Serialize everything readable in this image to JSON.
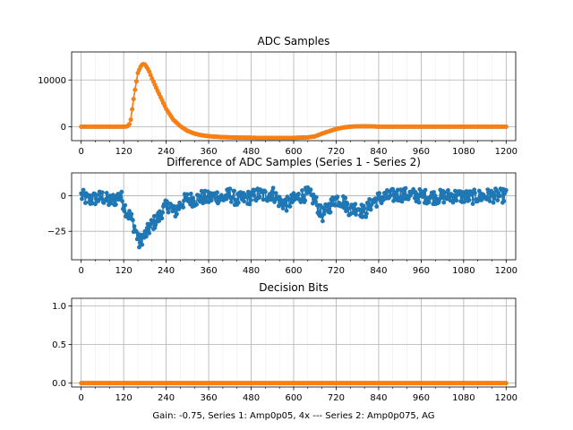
{
  "figure": {
    "footer": "Gain: -0.75, Series 1: Amp0p05, 4x --- Series 2: Amp0p075, AG"
  },
  "chart_data": [
    {
      "type": "line",
      "title": "ADC Samples",
      "xlabel": "",
      "ylabel": "",
      "xlim": [
        -27,
        1227
      ],
      "ylim": [
        -3000,
        16000
      ],
      "xticks": [
        0,
        120,
        240,
        360,
        480,
        600,
        720,
        840,
        960,
        1080,
        1200
      ],
      "xtick_labels": [
        "0",
        "120",
        "240",
        "360",
        "480",
        "600",
        "720",
        "840",
        "960",
        "1080",
        "1200"
      ],
      "yticks": [
        0,
        10000
      ],
      "ytick_labels": [
        "0",
        "10000"
      ],
      "minor_x_step": 40,
      "grid": true,
      "series": [
        {
          "name": "Series 1",
          "color": "#1f77b4",
          "x": [
            0,
            40,
            80,
            110,
            120,
            125,
            130,
            135,
            140,
            150,
            160,
            170,
            175,
            180,
            190,
            200,
            220,
            240,
            260,
            280,
            300,
            320,
            340,
            360,
            380,
            400,
            450,
            500,
            550,
            600,
            640,
            660,
            680,
            700,
            720,
            740,
            760,
            780,
            800,
            820,
            840,
            900,
            1000,
            1100,
            1200
          ],
          "values": [
            0,
            0,
            0,
            0,
            0,
            0,
            50,
            300,
            1500,
            7000,
            11500,
            13200,
            13400,
            13300,
            12200,
            10300,
            7000,
            3800,
            1500,
            100,
            -900,
            -1500,
            -1850,
            -2050,
            -2150,
            -2250,
            -2350,
            -2400,
            -2400,
            -2400,
            -2300,
            -2100,
            -1500,
            -1000,
            -500,
            -200,
            0,
            50,
            80,
            50,
            0,
            0,
            0,
            0,
            0
          ]
        },
        {
          "name": "Series 2",
          "color": "#ff7f0e",
          "x": [
            0,
            40,
            80,
            110,
            120,
            125,
            130,
            135,
            140,
            150,
            160,
            170,
            175,
            180,
            190,
            200,
            220,
            240,
            260,
            280,
            300,
            320,
            340,
            360,
            380,
            400,
            450,
            500,
            550,
            600,
            640,
            660,
            680,
            700,
            720,
            740,
            760,
            780,
            800,
            820,
            840,
            900,
            1000,
            1100,
            1200
          ],
          "values": [
            0,
            0,
            0,
            0,
            0,
            0,
            50,
            300,
            1500,
            7000,
            11500,
            13200,
            13400,
            13300,
            12200,
            10300,
            7000,
            3800,
            1500,
            100,
            -900,
            -1500,
            -1850,
            -2050,
            -2150,
            -2250,
            -2350,
            -2400,
            -2400,
            -2400,
            -2300,
            -2100,
            -1500,
            -1000,
            -500,
            -200,
            0,
            50,
            80,
            50,
            0,
            0,
            0,
            0,
            0
          ]
        }
      ]
    },
    {
      "type": "line",
      "title": "Difference of ADC Samples (Series 1 - Series 2)",
      "xlabel": "",
      "ylabel": "",
      "xlim": [
        -27,
        1227
      ],
      "ylim": [
        -45,
        16
      ],
      "xticks": [
        0,
        120,
        240,
        360,
        480,
        600,
        720,
        840,
        960,
        1080,
        1200
      ],
      "xtick_labels": [
        "0",
        "120",
        "240",
        "360",
        "480",
        "600",
        "720",
        "840",
        "960",
        "1080",
        "1200"
      ],
      "yticks": [
        -25,
        0
      ],
      "ytick_labels": [
        "−25",
        "0"
      ],
      "minor_x_step": 40,
      "grid": true,
      "series": [
        {
          "name": "Difference",
          "color": "#1f77b4",
          "x": [
            0,
            20,
            40,
            60,
            80,
            100,
            110,
            120,
            130,
            140,
            150,
            160,
            165,
            170,
            180,
            190,
            200,
            210,
            220,
            230,
            240,
            250,
            260,
            270,
            280,
            290,
            300,
            320,
            340,
            360,
            380,
            400,
            420,
            440,
            460,
            480,
            500,
            520,
            540,
            560,
            580,
            600,
            620,
            640,
            660,
            680,
            700,
            720,
            740,
            760,
            780,
            800,
            820,
            840,
            860,
            880,
            900,
            950,
            1000,
            1050,
            1100,
            1150,
            1200
          ],
          "values": [
            0,
            -3,
            -2,
            -1,
            -4,
            -2,
            1,
            -6,
            -12,
            -15,
            -22,
            -30,
            -34,
            -30,
            -28,
            -24,
            -20,
            -18,
            -15,
            -10,
            -8,
            -6,
            -12,
            -10,
            -6,
            -4,
            -2,
            -3,
            -1,
            -2,
            0,
            -2,
            1,
            -3,
            -2,
            -1,
            1,
            0,
            2,
            -4,
            -6,
            -3,
            0,
            1,
            -3,
            -14,
            -8,
            -2,
            -4,
            -10,
            -8,
            -12,
            -5,
            -2,
            -1,
            0,
            1,
            0,
            -1,
            0,
            -1,
            0,
            0
          ],
          "noise": 5
        }
      ]
    },
    {
      "type": "line",
      "title": "Decision Bits",
      "xlabel": "",
      "ylabel": "",
      "xlim": [
        -27,
        1227
      ],
      "ylim": [
        -0.05,
        1.1
      ],
      "xticks": [
        0,
        120,
        240,
        360,
        480,
        600,
        720,
        840,
        960,
        1080,
        1200
      ],
      "xtick_labels": [
        "0",
        "120",
        "240",
        "360",
        "480",
        "600",
        "720",
        "840",
        "960",
        "1080",
        "1200"
      ],
      "yticks": [
        0.0,
        0.5,
        1.0
      ],
      "ytick_labels": [
        "0.0",
        "0.5",
        "1.0"
      ],
      "minor_x_step": 40,
      "grid": true,
      "series": [
        {
          "name": "Series 1",
          "color": "#1f77b4",
          "x": [
            0,
            1200
          ],
          "values": [
            0,
            0
          ]
        },
        {
          "name": "Series 2",
          "color": "#ff7f0e",
          "x": [
            0,
            1200
          ],
          "values": [
            0,
            0
          ]
        }
      ]
    }
  ]
}
